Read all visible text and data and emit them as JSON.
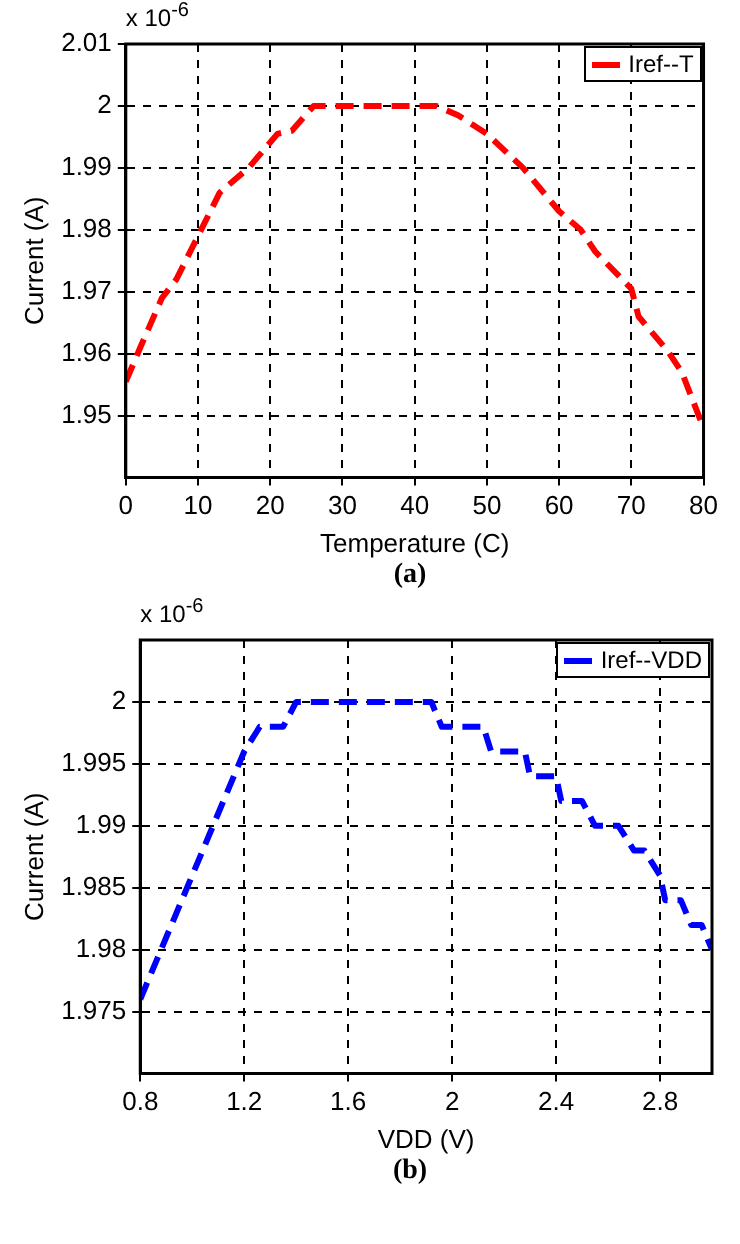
{
  "chart_data": [
    {
      "type": "line",
      "xlabel": "Temperature (C)",
      "ylabel": "Current (A)",
      "annotations": [
        "x 10$^{-6}$",
        "(a)"
      ],
      "x": [
        0,
        2,
        5,
        7,
        10,
        13,
        17,
        21,
        23,
        26,
        43,
        46,
        50,
        55,
        60,
        63,
        65,
        70,
        71,
        75,
        77,
        80
      ],
      "series": [
        {
          "name": "Iref--T",
          "color": "#ff0000",
          "values": [
            1.9555,
            1.961,
            1.969,
            1.972,
            1.979,
            1.986,
            1.99,
            1.9955,
            1.996,
            2.0,
            2.0,
            1.9985,
            1.9955,
            1.99,
            1.983,
            1.98,
            1.9765,
            1.9705,
            1.966,
            1.9605,
            1.957,
            1.948
          ]
        }
      ],
      "xlim": [
        0,
        80
      ],
      "xticks": [
        0,
        10,
        20,
        30,
        40,
        50,
        60,
        70,
        80
      ],
      "ylim": [
        1.94,
        2.01
      ],
      "yticks": [
        1.95,
        1.96,
        1.97,
        1.98,
        1.99,
        2,
        2.01
      ],
      "grid": true,
      "legend": "top right",
      "marker": "none",
      "line_style": "dashed"
    },
    {
      "type": "line",
      "xlabel": "VDD (V)",
      "ylabel": "Current (A)",
      "annotations": [
        "x 10$^{-6}$",
        "(b)"
      ],
      "x": [
        0.8,
        1.2,
        1.26,
        1.35,
        1.4,
        1.92,
        1.96,
        2.12,
        2.15,
        2.28,
        2.3,
        2.4,
        2.42,
        2.5,
        2.55,
        2.64,
        2.7,
        2.74,
        2.8,
        2.82,
        2.88,
        2.92,
        2.96,
        3.0
      ],
      "series": [
        {
          "name": "Iref--VDD",
          "color": "#0000ff",
          "values": [
            1.976,
            1.996,
            1.998,
            1.998,
            2.0,
            2.0,
            1.998,
            1.998,
            1.996,
            1.996,
            1.994,
            1.994,
            1.992,
            1.992,
            1.99,
            1.99,
            1.988,
            1.988,
            1.986,
            1.984,
            1.984,
            1.982,
            1.982,
            1.98
          ]
        }
      ],
      "xlim": [
        0.8,
        3.0
      ],
      "xticks": [
        0.8,
        1.2,
        1.6,
        2,
        2.4,
        2.8
      ],
      "ylim": [
        1.97,
        2.005
      ],
      "yticks": [
        1.975,
        1.98,
        1.985,
        1.99,
        1.995,
        2
      ],
      "grid": true,
      "legend": "top right",
      "marker": "none",
      "line_style": "dashed"
    }
  ]
}
